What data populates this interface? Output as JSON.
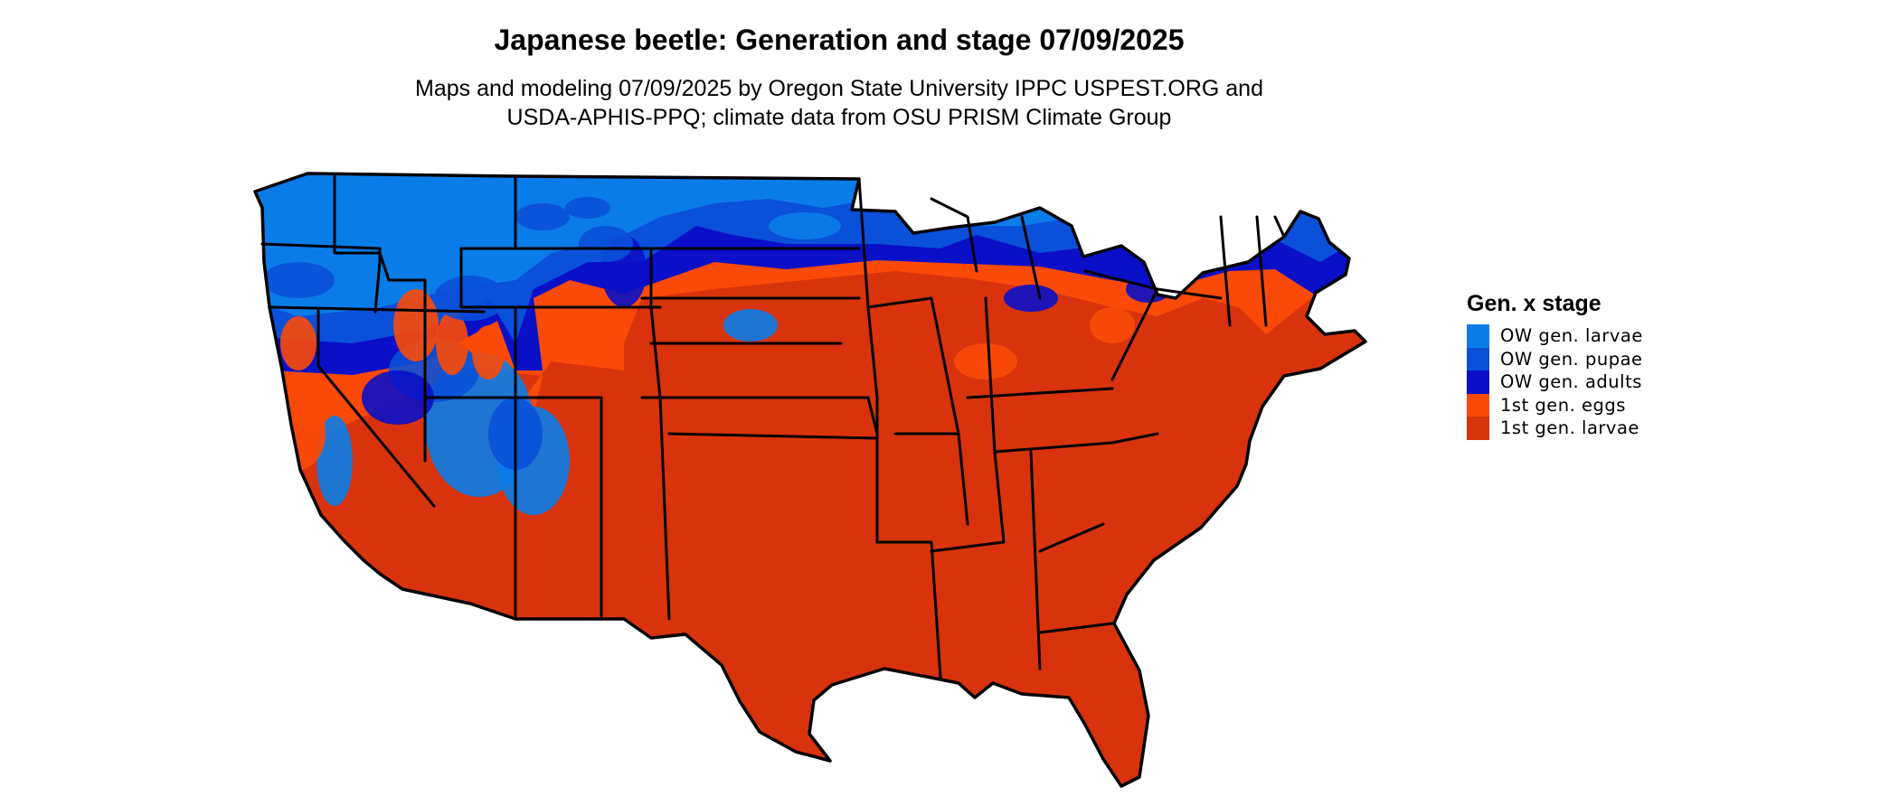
{
  "title": "Japanese beetle: Generation and stage 07/09/2025",
  "subtitle": [
    "Maps and modeling 07/09/2025 by Oregon State University IPPC USPEST.ORG and",
    "USDA-APHIS-PPQ; climate data from OSU PRISM Climate Group"
  ],
  "legend": {
    "title": "Gen. x stage",
    "items": [
      {
        "label": "OW gen. larvae",
        "color": "#0a7ce8"
      },
      {
        "label": "OW gen. pupae",
        "color": "#0a50d8"
      },
      {
        "label": "OW gen. adults",
        "color": "#0a10c8"
      },
      {
        "label": "1st gen. eggs",
        "color": "#fb4a08"
      },
      {
        "label": "1st gen. larvae",
        "color": "#d8330c"
      }
    ]
  }
}
